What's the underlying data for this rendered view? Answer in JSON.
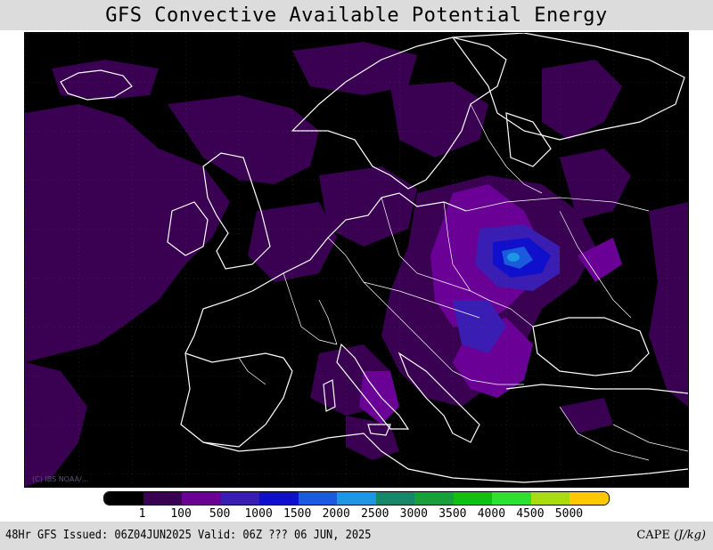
{
  "title": "GFS Convective Available Potential Energy",
  "map": {
    "credit": "(C) IBS NOAA/...",
    "background_color": "#000000",
    "coastline_color": "#ffffff"
  },
  "legend": {
    "colors": [
      "#000000",
      "#3a0052",
      "#6a0096",
      "#3a1eb4",
      "#1010cc",
      "#1a5adc",
      "#1e96e6",
      "#16886a",
      "#18a03a",
      "#12c012",
      "#30e030",
      "#a8dc10",
      "#ffc800"
    ],
    "labels": [
      "1",
      "100",
      "500",
      "1000",
      "1500",
      "2000",
      "2500",
      "3000",
      "3500",
      "4000",
      "4500",
      "5000"
    ]
  },
  "footer": {
    "left": "48Hr GFS Issued: 06Z04JUN2025 Valid: 06Z ??? 06 JUN, 2025",
    "right_prefix": "CAPE ",
    "right_units": "(J/kg)"
  }
}
